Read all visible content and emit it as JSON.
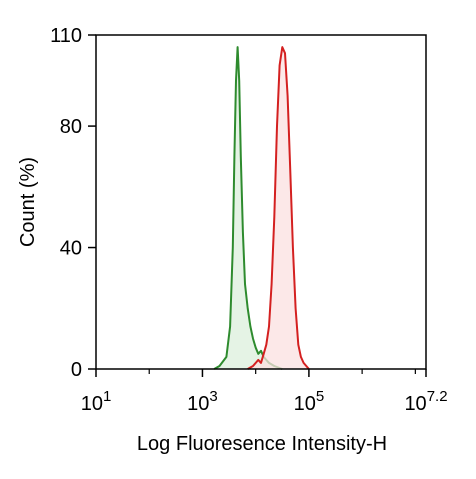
{
  "chart_data": {
    "type": "area",
    "xscale": "log",
    "xlim": [
      1,
      7.2
    ],
    "ylim": [
      0,
      110
    ],
    "xlabel": "Log Fluoresence Intensity-H",
    "ylabel": "Count  (%)",
    "y_ticks": [
      0,
      40,
      80,
      110
    ],
    "x_ticks": [
      {
        "base": "10",
        "exp": "1",
        "value": 1
      },
      {
        "base": "10",
        "exp": "3",
        "value": 3
      },
      {
        "base": "10",
        "exp": "5",
        "value": 5
      },
      {
        "base": "10",
        "exp": "7.2",
        "value": 7.2
      }
    ],
    "grid": false,
    "series": [
      {
        "color": "#2e8b2e",
        "fill": "#dcefdc",
        "points": [
          [
            3.22,
            0
          ],
          [
            3.32,
            1
          ],
          [
            3.45,
            4
          ],
          [
            3.52,
            14
          ],
          [
            3.57,
            40
          ],
          [
            3.6,
            70
          ],
          [
            3.63,
            95
          ],
          [
            3.66,
            106
          ],
          [
            3.69,
            95
          ],
          [
            3.72,
            70
          ],
          [
            3.76,
            45
          ],
          [
            3.8,
            28
          ],
          [
            3.85,
            20
          ],
          [
            3.9,
            14
          ],
          [
            3.95,
            10
          ],
          [
            4.0,
            7
          ],
          [
            4.05,
            5
          ],
          [
            4.1,
            6
          ],
          [
            4.15,
            4
          ],
          [
            4.2,
            3
          ],
          [
            4.25,
            2
          ],
          [
            4.35,
            1
          ],
          [
            4.5,
            0
          ]
        ]
      },
      {
        "color": "#d42020",
        "fill": "#fbe0e0",
        "points": [
          [
            3.85,
            0
          ],
          [
            3.95,
            1
          ],
          [
            4.05,
            3
          ],
          [
            4.1,
            2
          ],
          [
            4.15,
            5
          ],
          [
            4.2,
            8
          ],
          [
            4.25,
            14
          ],
          [
            4.3,
            28
          ],
          [
            4.35,
            50
          ],
          [
            4.4,
            80
          ],
          [
            4.45,
            100
          ],
          [
            4.5,
            106
          ],
          [
            4.55,
            104
          ],
          [
            4.6,
            90
          ],
          [
            4.65,
            65
          ],
          [
            4.7,
            40
          ],
          [
            4.75,
            20
          ],
          [
            4.8,
            8
          ],
          [
            4.85,
            4
          ],
          [
            4.9,
            2
          ],
          [
            5.0,
            0
          ]
        ]
      }
    ]
  }
}
